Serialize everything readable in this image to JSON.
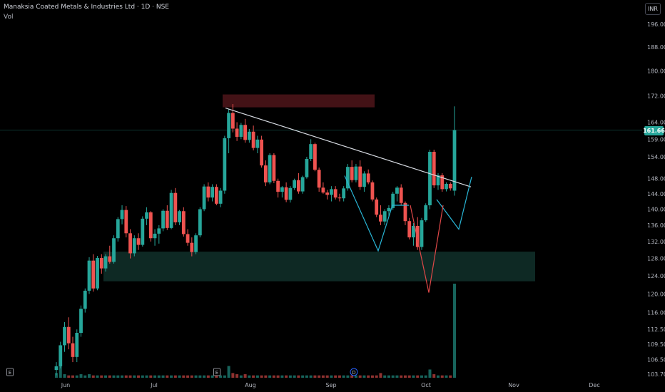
{
  "header": {
    "title": "Manaksia Coated Metals & Industries Ltd · 1D · NSE",
    "volume_label": "Vol",
    "currency": "INR"
  },
  "price_badge": "161.66",
  "colors": {
    "background": "#000000",
    "up": "#26a69a",
    "down": "#ef5350",
    "supply_zone": "#4a1418",
    "demand_zone": "#0f2b26",
    "trendline": "#d8dce3",
    "pattern_cyan": "#29b6d6",
    "pattern_red": "#e04848"
  },
  "event_markers": [
    {
      "label": "E",
      "kind": "earnings"
    },
    {
      "label": "E",
      "kind": "earnings"
    },
    {
      "label": "D",
      "kind": "dividend"
    }
  ],
  "chart_data": {
    "type": "candlestick",
    "title": "Manaksia Coated Metals & Industries Ltd · 1D · NSE",
    "xlabel": "",
    "ylabel": "",
    "x_ticks": [
      "Jun",
      "Jul",
      "Aug",
      "Sep",
      "Oct",
      "Nov",
      "Dec"
    ],
    "y_ticks": [
      "196.00",
      "188.00",
      "180.00",
      "172.00",
      "164.00",
      "159.00",
      "154.00",
      "148.00",
      "144.00",
      "140.00",
      "136.00",
      "132.00",
      "128.00",
      "124.00",
      "120.00",
      "116.00",
      "112.50",
      "109.50",
      "106.50",
      "103.70"
    ],
    "last_price": 161.66,
    "series": [
      {
        "name": "Price",
        "candles": [
          [
            104.5,
            106,
            103.5,
            105.2
          ],
          [
            105.2,
            110,
            104.8,
            109.3
          ],
          [
            109.3,
            114,
            108,
            113
          ],
          [
            113,
            115,
            108.5,
            109.7
          ],
          [
            109.7,
            111,
            106,
            107
          ],
          [
            107,
            112.5,
            106,
            111.8
          ],
          [
            111.8,
            117.5,
            111,
            116.8
          ],
          [
            116.8,
            121.2,
            116,
            120.7
          ],
          [
            120.7,
            128.3,
            120,
            127.5
          ],
          [
            127.5,
            129,
            120.5,
            121.2
          ],
          [
            121.2,
            128.6,
            120.8,
            128.1
          ],
          [
            128.1,
            129,
            124.5,
            125.7
          ],
          [
            125.7,
            129,
            125,
            128.5
          ],
          [
            128.5,
            131,
            126.8,
            127.2
          ],
          [
            127.2,
            133.5,
            126.8,
            132.8
          ],
          [
            132.8,
            138,
            132,
            137.5
          ],
          [
            137.5,
            141,
            136.2,
            139.8
          ],
          [
            139.8,
            140.8,
            133,
            134
          ],
          [
            134,
            135,
            128,
            129.2
          ],
          [
            129.2,
            133.5,
            128.5,
            132.8
          ],
          [
            132.8,
            134,
            130,
            131.2
          ],
          [
            131.2,
            138.2,
            130.8,
            137.6
          ],
          [
            137.6,
            140.5,
            136,
            139.2
          ],
          [
            139.2,
            139.5,
            132,
            132.8
          ],
          [
            132.8,
            135,
            131,
            133.9
          ],
          [
            133.9,
            136,
            131.5,
            135.2
          ],
          [
            135.2,
            140,
            134.5,
            139.6
          ],
          [
            139.6,
            141,
            134.8,
            135.3
          ],
          [
            135.3,
            145,
            135,
            144.2
          ],
          [
            144.2,
            145.5,
            136,
            136.7
          ],
          [
            136.7,
            139.8,
            136,
            139.5
          ],
          [
            139.5,
            140.5,
            133.2,
            133.8
          ],
          [
            133.8,
            135,
            131,
            131.7
          ],
          [
            131.7,
            133,
            128.5,
            129.5
          ],
          [
            129.5,
            134,
            129,
            133.5
          ],
          [
            133.5,
            140.5,
            133,
            140
          ],
          [
            140,
            146.5,
            139.5,
            145.9
          ],
          [
            145.9,
            147,
            142,
            143
          ],
          [
            143,
            146.5,
            142,
            145.8
          ],
          [
            145.8,
            146.5,
            141,
            141.4
          ],
          [
            141.4,
            145.5,
            140.5,
            144.8
          ],
          [
            144.8,
            160,
            144,
            159.3
          ],
          [
            159.3,
            168,
            155,
            166.8
          ],
          [
            166.8,
            169.5,
            161,
            162.1
          ],
          [
            162.1,
            164,
            158.5,
            159.7
          ],
          [
            159.7,
            163.8,
            159,
            163.2
          ],
          [
            163.2,
            165,
            158,
            158.8
          ],
          [
            158.8,
            162,
            158,
            161.2
          ],
          [
            161.2,
            163,
            155.8,
            156.5
          ],
          [
            156.5,
            160,
            155,
            158.9
          ],
          [
            158.9,
            160,
            151,
            151.6
          ],
          [
            151.6,
            153,
            146,
            147
          ],
          [
            147,
            155,
            146.5,
            154.5
          ],
          [
            154.5,
            155,
            146.8,
            147.4
          ],
          [
            147.4,
            148,
            143,
            144.5
          ],
          [
            144.5,
            146,
            143,
            145.7
          ],
          [
            145.7,
            147,
            141.8,
            142.4
          ],
          [
            142.4,
            146,
            141.7,
            145.5
          ],
          [
            145.5,
            148,
            145,
            147.6
          ],
          [
            147.6,
            149.5,
            144,
            144.6
          ],
          [
            144.6,
            148.8,
            144,
            148.4
          ],
          [
            148.4,
            154,
            148,
            153.4
          ],
          [
            153.4,
            159,
            152.8,
            157.6
          ],
          [
            157.6,
            158,
            150,
            150.4
          ],
          [
            150.4,
            151,
            144.5,
            145.6
          ],
          [
            145.6,
            147,
            144,
            144.3
          ],
          [
            144.3,
            145,
            142.5,
            143.7
          ],
          [
            143.7,
            146,
            142,
            145.2
          ],
          [
            145.2,
            146,
            142.5,
            143
          ],
          [
            143,
            144,
            142,
            142.8
          ],
          [
            142.8,
            146,
            142,
            145.4
          ],
          [
            145.4,
            152,
            144.8,
            151.2
          ],
          [
            151.2,
            153,
            147,
            147.6
          ],
          [
            147.6,
            152,
            147,
            151.3
          ],
          [
            151.3,
            153,
            145,
            145.8
          ],
          [
            145.8,
            150,
            144.5,
            149.4
          ],
          [
            149.4,
            150.5,
            146.5,
            147
          ],
          [
            147,
            147.5,
            142,
            142.5
          ],
          [
            142.5,
            143,
            138,
            138.6
          ],
          [
            138.6,
            141,
            136,
            136.9
          ],
          [
            136.9,
            140,
            136,
            139.5
          ],
          [
            139.5,
            141,
            138,
            140.3
          ],
          [
            140.3,
            144.5,
            139.8,
            144
          ],
          [
            144,
            146,
            142,
            145.6
          ],
          [
            145.6,
            146.5,
            141,
            141.6
          ],
          [
            141.6,
            142,
            136,
            137
          ],
          [
            137,
            137.8,
            132.5,
            133
          ],
          [
            133,
            136.5,
            131,
            135.8
          ],
          [
            135.8,
            138,
            130,
            130.7
          ],
          [
            130.7,
            137.8,
            130,
            137.2
          ],
          [
            137.2,
            141.5,
            136.8,
            141
          ],
          [
            141,
            156,
            140,
            155.4
          ],
          [
            155.4,
            156,
            145.5,
            146.2
          ],
          [
            146.2,
            149.5,
            145,
            148.9
          ],
          [
            148.9,
            149.5,
            144.5,
            145.2
          ],
          [
            145.2,
            147,
            144.6,
            146.6
          ],
          [
            146.6,
            147,
            144.8,
            145.4
          ],
          [
            144.8,
            168.8,
            143.5,
            161.66
          ]
        ]
      },
      {
        "name": "Vol",
        "values": [
          4,
          12,
          3,
          2,
          2,
          2,
          3,
          2,
          3,
          2,
          2,
          2,
          2,
          2,
          2,
          2,
          2,
          2,
          2,
          2,
          2,
          2,
          2,
          2,
          2,
          2,
          2,
          2,
          2,
          2,
          2,
          2,
          2,
          2,
          2,
          2,
          2,
          2,
          2,
          2,
          2,
          2,
          10,
          4,
          3,
          2,
          3,
          2,
          2,
          2,
          2,
          2,
          2,
          2,
          2,
          2,
          2,
          2,
          2,
          2,
          2,
          2,
          2,
          2,
          2,
          2,
          2,
          2,
          2,
          2,
          2,
          2,
          2,
          2,
          2,
          2,
          2,
          2,
          2,
          4,
          2,
          2,
          2,
          2,
          2,
          2,
          2,
          2,
          2,
          2,
          2,
          7,
          3,
          2,
          2,
          2,
          2,
          80
        ]
      }
    ],
    "zones": [
      {
        "type": "supply",
        "from": 168.5,
        "to": 172.5
      },
      {
        "type": "demand",
        "from": 122.8,
        "to": 129.6
      }
    ],
    "trendline": [
      [
        168.3
      ],
      [
        145.8
      ]
    ],
    "ylim": [
      103,
      201
    ],
    "grid": false,
    "log_scale": true
  }
}
